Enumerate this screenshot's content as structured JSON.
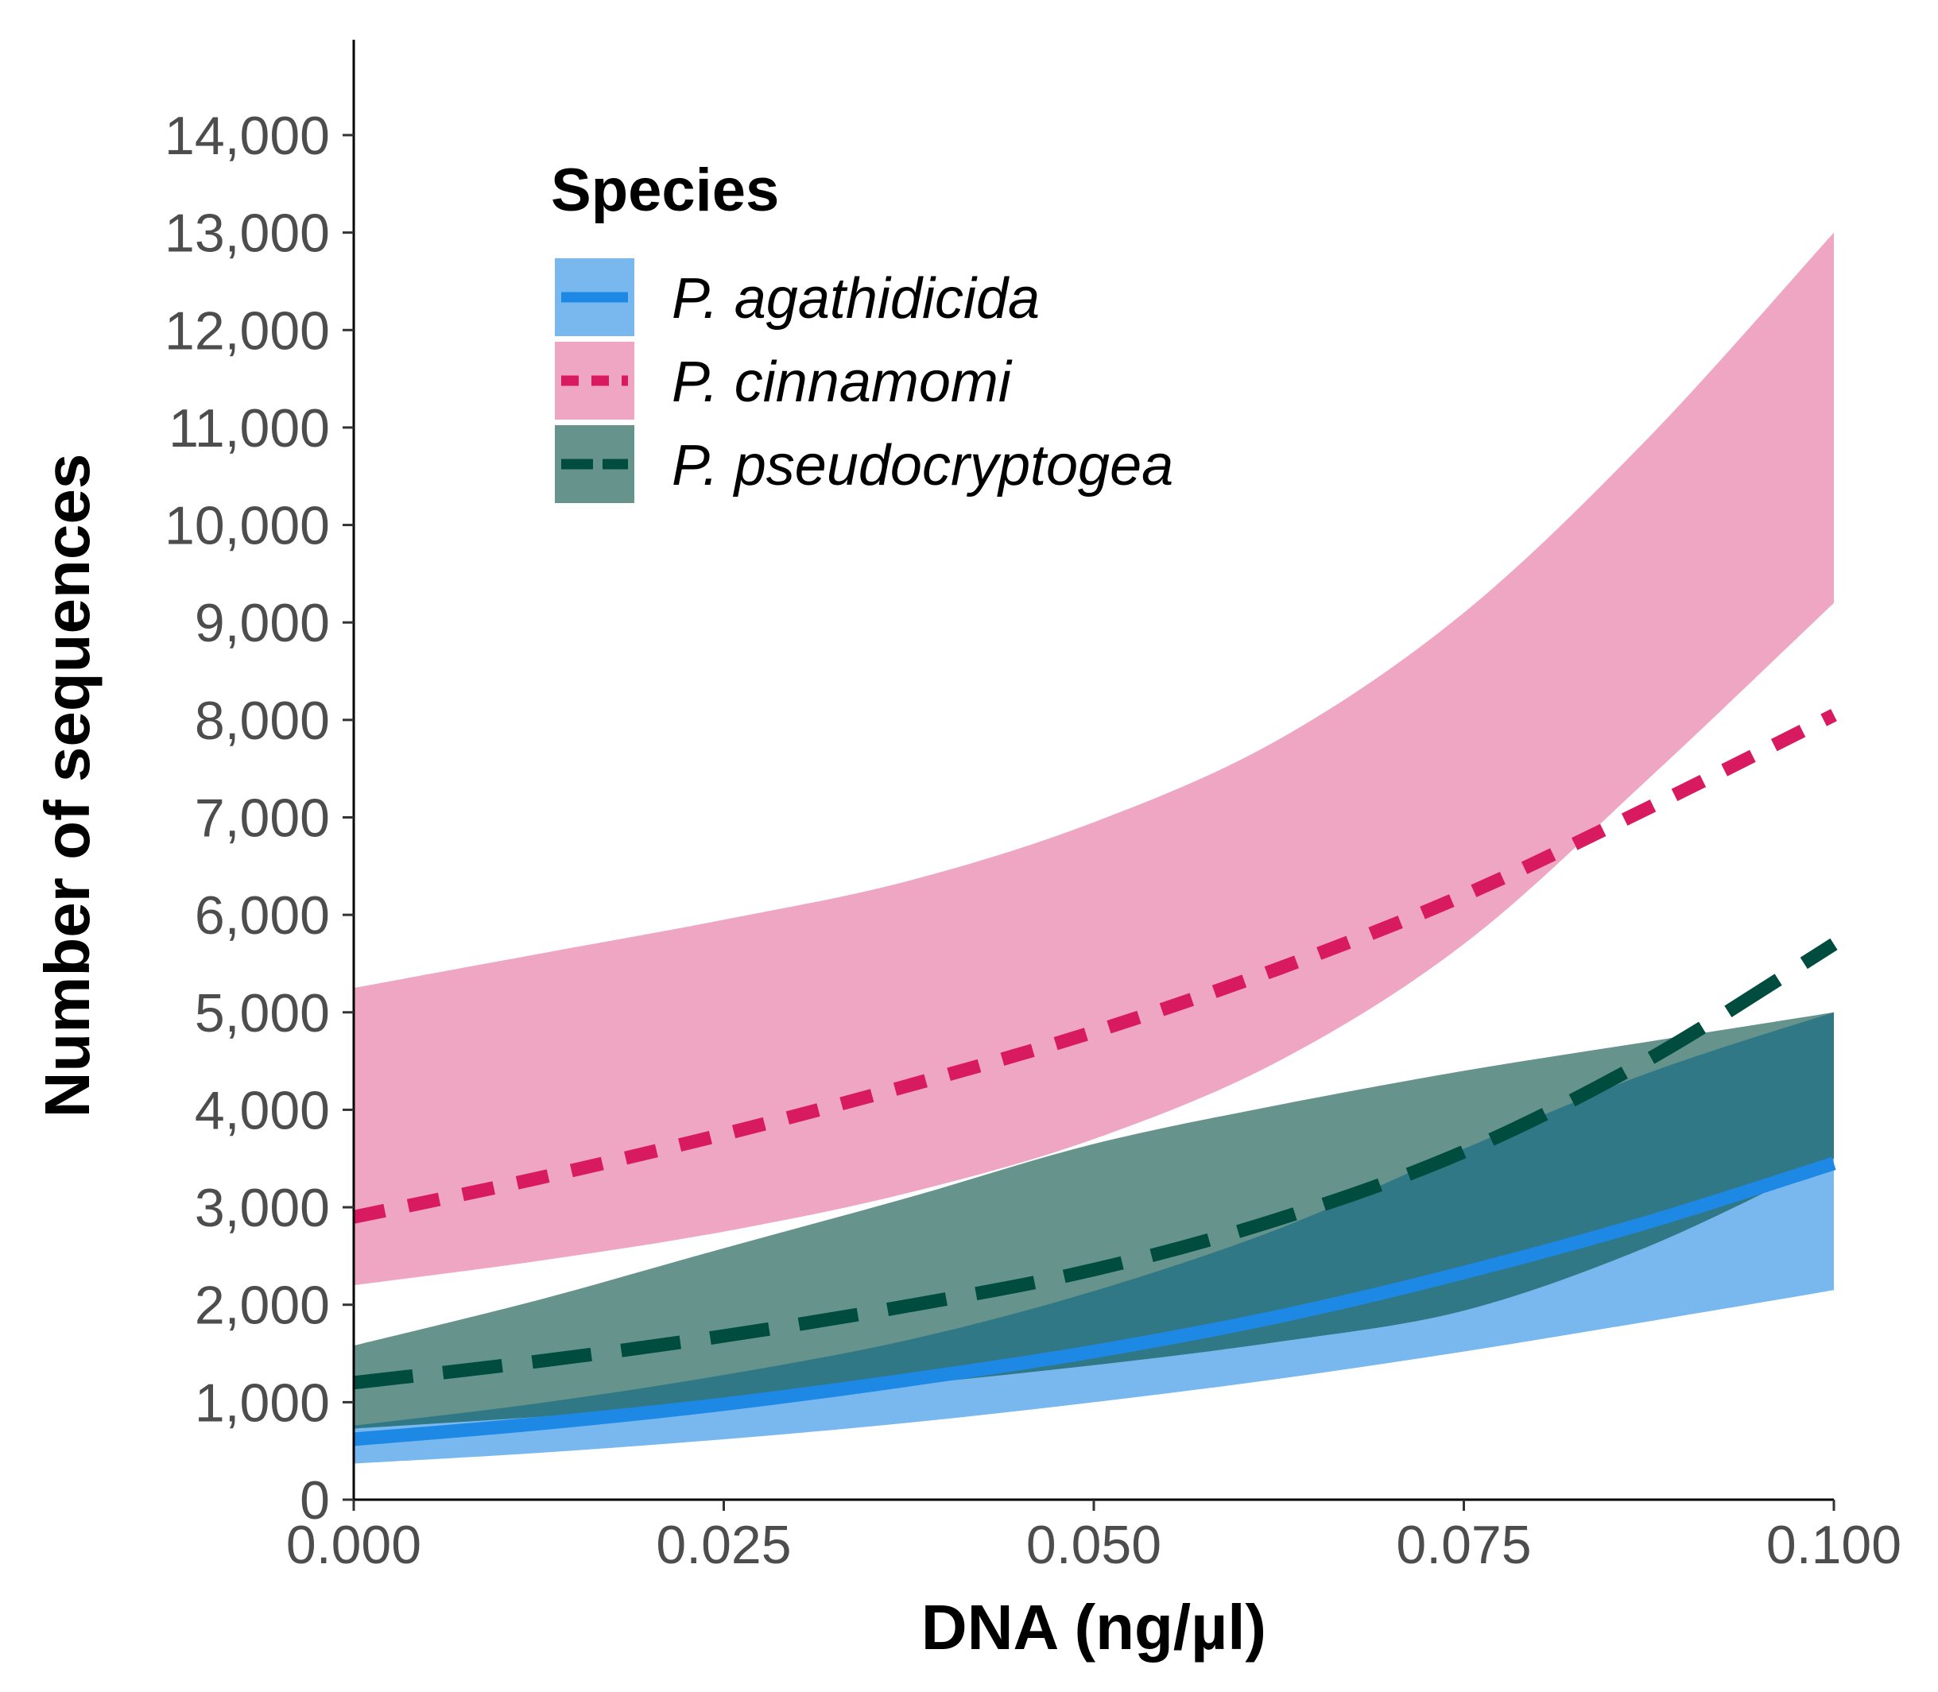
{
  "chart_data": {
    "type": "area",
    "title": "",
    "xlabel": "DNA (ng/µl)",
    "ylabel": "Number of sequences",
    "xlim": [
      0,
      0.1
    ],
    "ylim": [
      0,
      15000
    ],
    "x_ticks": [
      0,
      0.025,
      0.05,
      0.075,
      0.1
    ],
    "x_tick_labels": [
      "0.000",
      "0.025",
      "0.050",
      "0.075",
      "0.100"
    ],
    "y_ticks": [
      0,
      1000,
      2000,
      3000,
      4000,
      5000,
      6000,
      7000,
      8000,
      9000,
      10000,
      11000,
      12000,
      13000,
      14000
    ],
    "y_tick_labels": [
      "0",
      "1,000",
      "2,000",
      "3,000",
      "4,000",
      "5,000",
      "6,000",
      "7,000",
      "8,000",
      "9,000",
      "10,000",
      "11,000",
      "12,000",
      "13,000",
      "14,000"
    ],
    "grid": false,
    "legend": {
      "title": "Species",
      "placement": "top-left"
    },
    "x": [
      0,
      0.0125,
      0.025,
      0.0375,
      0.05,
      0.0625,
      0.075,
      0.0875,
      0.1
    ],
    "series": [
      {
        "name": "P. agathidicida",
        "linestyle": "solid",
        "line_color": "#1e88e5",
        "band_color": "#1e88e5",
        "band_opacity": 0.6,
        "fit": [
          620,
          780,
          980,
          1230,
          1520,
          1880,
          2330,
          2850,
          3450
        ],
        "lower": [
          370,
          480,
          620,
          790,
          1000,
          1240,
          1520,
          1830,
          2150
        ],
        "upper": [
          760,
          990,
          1280,
          1640,
          2140,
          2780,
          3600,
          4380,
          5000
        ]
      },
      {
        "name": "P. cinnamomi",
        "linestyle": "dotted",
        "line_color": "#d81b60",
        "band_color": "#e56a9a",
        "band_opacity": 0.6,
        "fit": [
          2900,
          3300,
          3750,
          4250,
          4800,
          5450,
          6200,
          7100,
          8050
        ],
        "lower": [
          2200,
          2450,
          2750,
          3150,
          3700,
          4500,
          5700,
          7400,
          9200
        ],
        "upper": [
          5250,
          5600,
          5950,
          6350,
          6950,
          7800,
          9100,
          10900,
          13000
        ]
      },
      {
        "name": "P. pseudocryptogea",
        "linestyle": "dashed",
        "line_color": "#004d40",
        "band_color": "#004d40",
        "band_opacity": 0.6,
        "fit": [
          1200,
          1420,
          1680,
          1990,
          2360,
          2880,
          3570,
          4520,
          5700
        ],
        "lower": [
          730,
          850,
          1000,
          1180,
          1380,
          1620,
          1940,
          2600,
          3500
        ],
        "upper": [
          1580,
          2050,
          2580,
          3100,
          3650,
          4050,
          4400,
          4700,
          5000
        ]
      }
    ]
  }
}
